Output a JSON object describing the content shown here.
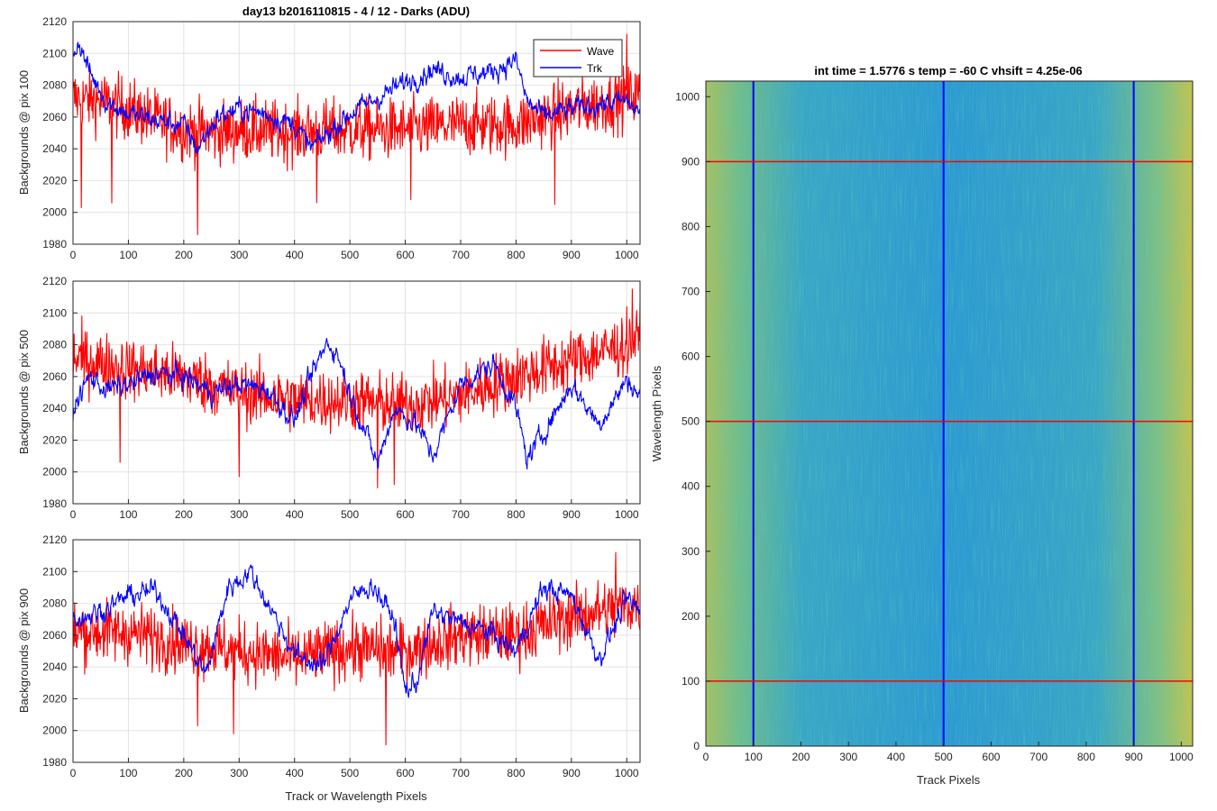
{
  "figure": {
    "title": "day13 b2016110815 - 4 / 12 - Darks (ADU)",
    "colors": {
      "wave": "#ff0000",
      "trk": "#0000ff",
      "axis": "#262626",
      "grid": "#e3e3e3"
    }
  },
  "chart_data": [
    {
      "type": "line",
      "title": "day13 b2016110815 - 4 / 12 - Darks (ADU)",
      "xlabel": "",
      "ylabel": "Backgrounds @ pix 100",
      "xlim": [
        0,
        1024
      ],
      "ylim": [
        1980,
        2120
      ],
      "xticks": [
        "0",
        "100",
        "200",
        "300",
        "400",
        "500",
        "600",
        "700",
        "800",
        "900",
        "1000"
      ],
      "yticks": [
        "1980",
        "2000",
        "2020",
        "2040",
        "2060",
        "2080",
        "2100",
        "2120"
      ],
      "grid": true,
      "legend": {
        "position": "top-right",
        "entries": [
          "Wave",
          "Trk"
        ]
      },
      "series": [
        {
          "name": "Wave",
          "color": "#ff0000",
          "mean": 2058,
          "noise": 13,
          "anchors": [
            [
              0,
              2072
            ],
            [
              50,
              2070
            ],
            [
              100,
              2065
            ],
            [
              150,
              2058
            ],
            [
              200,
              2052
            ],
            [
              250,
              2050
            ],
            [
              300,
              2052
            ],
            [
              400,
              2050
            ],
            [
              500,
              2052
            ],
            [
              600,
              2052
            ],
            [
              700,
              2055
            ],
            [
              800,
              2055
            ],
            [
              900,
              2065
            ],
            [
              1000,
              2072
            ],
            [
              1024,
              2075
            ]
          ],
          "outliers": [
            [
              15,
              2003
            ],
            [
              70,
              2006
            ],
            [
              225,
              1986
            ],
            [
              440,
              2006
            ],
            [
              610,
              2008
            ],
            [
              870,
              2005
            ],
            [
              1000,
              2112
            ]
          ]
        },
        {
          "name": "Trk",
          "color": "#0000ff",
          "mean": 2060,
          "noise": 4,
          "anchors": [
            [
              0,
              2100
            ],
            [
              10,
              2108
            ],
            [
              30,
              2088
            ],
            [
              60,
              2070
            ],
            [
              100,
              2062
            ],
            [
              150,
              2058
            ],
            [
              200,
              2055
            ],
            [
              225,
              2040
            ],
            [
              260,
              2060
            ],
            [
              300,
              2065
            ],
            [
              350,
              2062
            ],
            [
              400,
              2055
            ],
            [
              430,
              2040
            ],
            [
              460,
              2050
            ],
            [
              500,
              2062
            ],
            [
              550,
              2072
            ],
            [
              600,
              2082
            ],
            [
              650,
              2090
            ],
            [
              700,
              2085
            ],
            [
              750,
              2088
            ],
            [
              800,
              2096
            ],
            [
              820,
              2070
            ],
            [
              850,
              2060
            ],
            [
              900,
              2065
            ],
            [
              950,
              2068
            ],
            [
              1000,
              2070
            ],
            [
              1024,
              2062
            ]
          ]
        }
      ]
    },
    {
      "type": "line",
      "xlabel": "",
      "ylabel": "Backgrounds @ pix 500",
      "xlim": [
        0,
        1024
      ],
      "ylim": [
        1980,
        2120
      ],
      "xticks": [
        "0",
        "100",
        "200",
        "300",
        "400",
        "500",
        "600",
        "700",
        "800",
        "900",
        "1000"
      ],
      "yticks": [
        "1980",
        "2000",
        "2020",
        "2040",
        "2060",
        "2080",
        "2100",
        "2120"
      ],
      "grid": true,
      "series": [
        {
          "name": "Wave",
          "color": "#ff0000",
          "mean": 2050,
          "noise": 13,
          "anchors": [
            [
              0,
              2072
            ],
            [
              100,
              2065
            ],
            [
              200,
              2060
            ],
            [
              300,
              2050
            ],
            [
              400,
              2045
            ],
            [
              500,
              2045
            ],
            [
              600,
              2042
            ],
            [
              700,
              2048
            ],
            [
              800,
              2060
            ],
            [
              900,
              2070
            ],
            [
              1000,
              2080
            ],
            [
              1024,
              2085
            ]
          ],
          "outliers": [
            [
              85,
              2006
            ],
            [
              300,
              1997
            ],
            [
              550,
              1990
            ],
            [
              580,
              1992
            ],
            [
              1010,
              2115
            ]
          ]
        },
        {
          "name": "Trk",
          "color": "#0000ff",
          "mean": 2050,
          "noise": 4,
          "anchors": [
            [
              0,
              2040
            ],
            [
              30,
              2060
            ],
            [
              60,
              2052
            ],
            [
              100,
              2055
            ],
            [
              150,
              2062
            ],
            [
              200,
              2060
            ],
            [
              250,
              2050
            ],
            [
              300,
              2055
            ],
            [
              350,
              2052
            ],
            [
              400,
              2032
            ],
            [
              430,
              2060
            ],
            [
              460,
              2082
            ],
            [
              480,
              2072
            ],
            [
              500,
              2050
            ],
            [
              550,
              2005
            ],
            [
              580,
              2040
            ],
            [
              620,
              2030
            ],
            [
              650,
              2010
            ],
            [
              700,
              2055
            ],
            [
              760,
              2068
            ],
            [
              800,
              2040
            ],
            [
              820,
              2008
            ],
            [
              850,
              2025
            ],
            [
              900,
              2055
            ],
            [
              950,
              2030
            ],
            [
              1000,
              2058
            ],
            [
              1024,
              2048
            ]
          ]
        }
      ]
    },
    {
      "type": "line",
      "xlabel": "Track or Wavelength Pixels",
      "ylabel": "Backgrounds @ pix 900",
      "xlim": [
        0,
        1024
      ],
      "ylim": [
        1980,
        2120
      ],
      "xticks": [
        "0",
        "100",
        "200",
        "300",
        "400",
        "500",
        "600",
        "700",
        "800",
        "900",
        "1000"
      ],
      "yticks": [
        "1980",
        "2000",
        "2020",
        "2040",
        "2060",
        "2080",
        "2100",
        "2120"
      ],
      "grid": true,
      "series": [
        {
          "name": "Wave",
          "color": "#ff0000",
          "mean": 2055,
          "noise": 13,
          "anchors": [
            [
              0,
              2062
            ],
            [
              100,
              2062
            ],
            [
              200,
              2055
            ],
            [
              300,
              2050
            ],
            [
              400,
              2045
            ],
            [
              500,
              2052
            ],
            [
              600,
              2050
            ],
            [
              700,
              2060
            ],
            [
              800,
              2060
            ],
            [
              900,
              2072
            ],
            [
              1000,
              2078
            ],
            [
              1024,
              2080
            ]
          ],
          "outliers": [
            [
              225,
              2003
            ],
            [
              290,
              1998
            ],
            [
              565,
              1991
            ],
            [
              980,
              2112
            ]
          ]
        },
        {
          "name": "Trk",
          "color": "#0000ff",
          "mean": 2065,
          "noise": 4,
          "anchors": [
            [
              0,
              2070
            ],
            [
              50,
              2075
            ],
            [
              100,
              2085
            ],
            [
              150,
              2088
            ],
            [
              200,
              2060
            ],
            [
              240,
              2035
            ],
            [
              280,
              2090
            ],
            [
              320,
              2100
            ],
            [
              360,
              2075
            ],
            [
              400,
              2048
            ],
            [
              450,
              2040
            ],
            [
              500,
              2082
            ],
            [
              540,
              2092
            ],
            [
              580,
              2070
            ],
            [
              600,
              2025
            ],
            [
              620,
              2030
            ],
            [
              650,
              2075
            ],
            [
              700,
              2068
            ],
            [
              750,
              2062
            ],
            [
              800,
              2050
            ],
            [
              850,
              2090
            ],
            [
              900,
              2085
            ],
            [
              950,
              2045
            ],
            [
              1000,
              2082
            ],
            [
              1024,
              2075
            ]
          ]
        }
      ]
    },
    {
      "type": "heatmap",
      "title": "int time = 1.5776 s    temp = -60 C    vhsift = 4.25e-06",
      "xlabel": "Track Pixels",
      "ylabel": "Wavelength Pixels",
      "xlim": [
        0,
        1024
      ],
      "ylim": [
        0,
        1024
      ],
      "xticks": [
        "0",
        "100",
        "200",
        "300",
        "400",
        "500",
        "600",
        "700",
        "800",
        "900",
        "1000"
      ],
      "yticks": [
        "0",
        "100",
        "200",
        "300",
        "400",
        "500",
        "600",
        "700",
        "800",
        "900",
        "1000"
      ],
      "colormap": [
        "#2b8fd4",
        "#28a8c8",
        "#36b8b0",
        "#7ec27a",
        "#c8c04a"
      ],
      "vertical_markers": {
        "x": [
          100,
          500,
          900
        ],
        "color": "#0000ff"
      },
      "horizontal_markers": {
        "y": [
          100,
          500,
          900
        ],
        "color": "#ff0000"
      }
    }
  ]
}
